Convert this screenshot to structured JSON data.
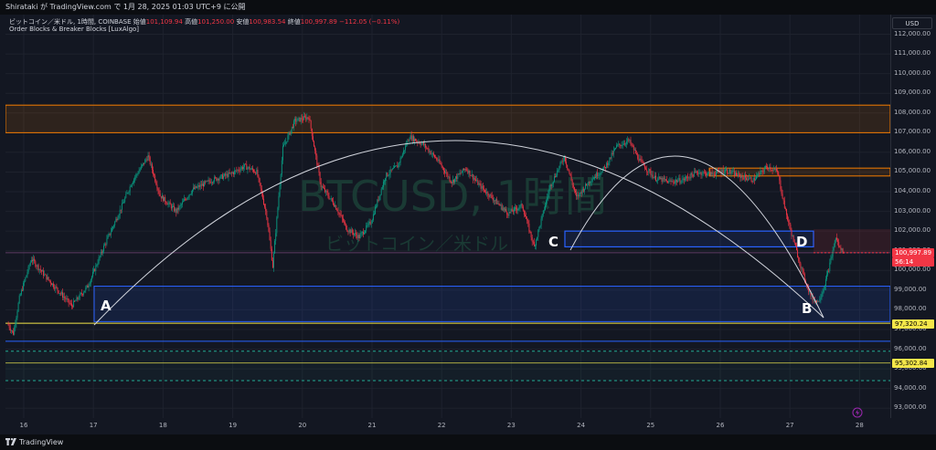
{
  "header": {
    "author_line": "Shirataki が TradingView.com で 1月 28, 2025 01:03 UTC+9 に公開",
    "symbol_line": "ビットコイン／米ドル, 1時間, COINBASE",
    "open_label": "始値",
    "open_value": "101,109.94",
    "high_label": "高値",
    "high_value": "101,250.00",
    "low_label": "安値",
    "low_value": "100,983.54",
    "close_label": "終値",
    "close_value": "100,997.89",
    "change": "−112.05 (−0.11%)",
    "indicator": "Order Blocks & Breaker Blocks [LuxAlgo]",
    "currency": "USD"
  },
  "watermark": {
    "main": "BTCUSD, 1時間",
    "sub": "ビットコイン／米ドル"
  },
  "footer": {
    "brand": "TradingView"
  },
  "annotations": {
    "a": "A",
    "b": "B",
    "c": "C",
    "d": "D"
  },
  "price_tags": {
    "last": "100,997.89",
    "countdown": "56:14",
    "level1": "97,320.24",
    "level2": "95,302.84"
  },
  "colors": {
    "up": "#089981",
    "down": "#f23645",
    "bg": "#131722",
    "orange_zone": "#f57c00",
    "blue_zone": "#2962ff",
    "yellow": "#f5e74a",
    "green_dash": "#22ab94"
  },
  "chart_data": {
    "type": "candlestick",
    "ylim": [
      92500,
      113000
    ],
    "y_ticks": [
      "112,000.00",
      "111,000.00",
      "110,000.00",
      "109,000.00",
      "108,000.00",
      "107,000.00",
      "106,000.00",
      "105,000.00",
      "104,000.00",
      "103,000.00",
      "102,000.00",
      "101,000.00",
      "100,000.00",
      "99,000.00",
      "98,000.00",
      "97,000.00",
      "96,000.00",
      "95,000.00",
      "94,000.00",
      "93,000.00"
    ],
    "x_labels": [
      "16",
      "17",
      "18",
      "19",
      "20",
      "21",
      "22",
      "23",
      "24",
      "25",
      "26",
      "27",
      "28"
    ],
    "waypoints": [
      [
        0,
        97300
      ],
      [
        6,
        96800
      ],
      [
        12,
        98600
      ],
      [
        24,
        100600
      ],
      [
        38,
        99700
      ],
      [
        52,
        98900
      ],
      [
        64,
        98200
      ],
      [
        80,
        99200
      ],
      [
        96,
        101200
      ],
      [
        110,
        102800
      ],
      [
        124,
        104500
      ],
      [
        140,
        105800
      ],
      [
        152,
        103800
      ],
      [
        168,
        103000
      ],
      [
        184,
        104100
      ],
      [
        204,
        104600
      ],
      [
        222,
        104900
      ],
      [
        236,
        105300
      ],
      [
        248,
        105000
      ],
      [
        258,
        102800
      ],
      [
        264,
        100200
      ],
      [
        274,
        106200
      ],
      [
        286,
        107600
      ],
      [
        300,
        107800
      ],
      [
        312,
        104300
      ],
      [
        326,
        103300
      ],
      [
        338,
        102100
      ],
      [
        350,
        101700
      ],
      [
        362,
        102500
      ],
      [
        376,
        104800
      ],
      [
        388,
        105300
      ],
      [
        400,
        106800
      ],
      [
        414,
        106400
      ],
      [
        428,
        105600
      ],
      [
        442,
        104500
      ],
      [
        456,
        105200
      ],
      [
        470,
        104300
      ],
      [
        484,
        103600
      ],
      [
        498,
        102900
      ],
      [
        512,
        103300
      ],
      [
        524,
        101200
      ],
      [
        540,
        104300
      ],
      [
        554,
        105800
      ],
      [
        566,
        103700
      ],
      [
        580,
        104600
      ],
      [
        594,
        105200
      ],
      [
        606,
        106300
      ],
      [
        618,
        106600
      ],
      [
        630,
        105500
      ],
      [
        644,
        104700
      ],
      [
        658,
        104500
      ],
      [
        672,
        104600
      ],
      [
        686,
        105000
      ],
      [
        700,
        104900
      ],
      [
        714,
        105100
      ],
      [
        728,
        104800
      ],
      [
        742,
        104600
      ],
      [
        756,
        105300
      ],
      [
        766,
        105000
      ],
      [
        774,
        103000
      ],
      [
        782,
        101500
      ],
      [
        792,
        99700
      ],
      [
        800,
        98600
      ],
      [
        806,
        98400
      ],
      [
        812,
        99100
      ],
      [
        818,
        100300
      ],
      [
        824,
        101700
      ],
      [
        828,
        101100
      ],
      [
        832,
        101000
      ]
    ],
    "levels": {
      "orange_zone_top": 108400,
      "orange_zone_bottom": 107000,
      "orange_thin_top": 105200,
      "orange_thin_bottom": 104800,
      "blue_zone_top": 99200,
      "blue_zone_bottom": 97400,
      "blue_small_top": 102000,
      "blue_small_bottom": 101200,
      "red_dash": 100900,
      "yellow_line_1": 97320.24,
      "yellow_line_2": 95302.84,
      "blue_line": 96400,
      "green_dash_1": 95900,
      "green_dash_2": 94400,
      "purple_line": 100900
    }
  }
}
